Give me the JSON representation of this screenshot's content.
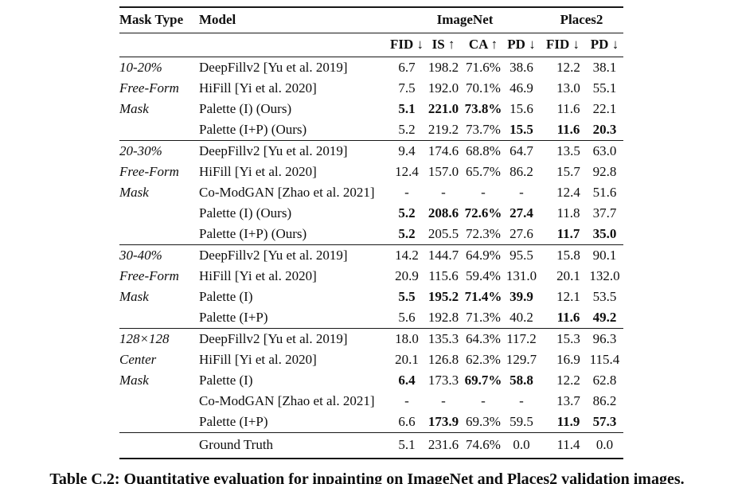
{
  "colors": {
    "text": "#0e0e0e",
    "background": "#ffffff",
    "rule": "#171717"
  },
  "table": {
    "header": {
      "mask_type_label": "Mask Type",
      "model_label": "Model",
      "dataset_groups": [
        "ImageNet",
        "Places2"
      ],
      "metric_headers": [
        "FID ↓",
        "IS ↑",
        "CA ↑",
        "PD ↓",
        "FID ↓",
        "PD ↓"
      ]
    },
    "groups": [
      {
        "mask_type": [
          "10-20%",
          "Free-Form",
          "Mask",
          ""
        ],
        "rows": [
          {
            "model": "DeepFillv2 [Yu et al. 2019]",
            "values": [
              "6.7",
              "198.2",
              "71.6%",
              "38.6",
              "12.2",
              "38.1"
            ],
            "bold": [
              false,
              false,
              false,
              false,
              false,
              false
            ]
          },
          {
            "model": "HiFill [Yi et al. 2020]",
            "values": [
              "7.5",
              "192.0",
              "70.1%",
              "46.9",
              "13.0",
              "55.1"
            ],
            "bold": [
              false,
              false,
              false,
              false,
              false,
              false
            ]
          },
          {
            "model": "Palette (I) (Ours)",
            "values": [
              "5.1",
              "221.0",
              "73.8%",
              "15.6",
              "11.6",
              "22.1"
            ],
            "bold": [
              true,
              true,
              true,
              false,
              false,
              false
            ]
          },
          {
            "model": "Palette (I+P) (Ours)",
            "values": [
              "5.2",
              "219.2",
              "73.7%",
              "15.5",
              "11.6",
              "20.3"
            ],
            "bold": [
              false,
              false,
              false,
              true,
              true,
              true
            ]
          }
        ]
      },
      {
        "mask_type": [
          "20-30%",
          "Free-Form",
          "Mask",
          "",
          ""
        ],
        "rows": [
          {
            "model": "DeepFillv2 [Yu et al. 2019]",
            "values": [
              "9.4",
              "174.6",
              "68.8%",
              "64.7",
              "13.5",
              "63.0"
            ],
            "bold": [
              false,
              false,
              false,
              false,
              false,
              false
            ]
          },
          {
            "model": "HiFill [Yi et al. 2020]",
            "values": [
              "12.4",
              "157.0",
              "65.7%",
              "86.2",
              "15.7",
              "92.8"
            ],
            "bold": [
              false,
              false,
              false,
              false,
              false,
              false
            ]
          },
          {
            "model": "Co-ModGAN [Zhao et al. 2021]",
            "values": [
              "-",
              "-",
              "-",
              "-",
              "12.4",
              "51.6"
            ],
            "bold": [
              false,
              false,
              false,
              false,
              false,
              false
            ]
          },
          {
            "model": "Palette (I) (Ours)",
            "values": [
              "5.2",
              "208.6",
              "72.6%",
              "27.4",
              "11.8",
              "37.7"
            ],
            "bold": [
              true,
              true,
              true,
              true,
              false,
              false
            ]
          },
          {
            "model": "Palette (I+P) (Ours)",
            "values": [
              "5.2",
              "205.5",
              "72.3%",
              "27.6",
              "11.7",
              "35.0"
            ],
            "bold": [
              true,
              false,
              false,
              false,
              true,
              true
            ]
          }
        ]
      },
      {
        "mask_type": [
          "30-40%",
          "Free-Form",
          "Mask",
          ""
        ],
        "rows": [
          {
            "model": "DeepFillv2 [Yu et al. 2019]",
            "values": [
              "14.2",
              "144.7",
              "64.9%",
              "95.5",
              "15.8",
              "90.1"
            ],
            "bold": [
              false,
              false,
              false,
              false,
              false,
              false
            ]
          },
          {
            "model": "HiFill [Yi et al. 2020]",
            "values": [
              "20.9",
              "115.6",
              "59.4%",
              "131.0",
              "20.1",
              "132.0"
            ],
            "bold": [
              false,
              false,
              false,
              false,
              false,
              false
            ]
          },
          {
            "model": "Palette (I)",
            "values": [
              "5.5",
              "195.2",
              "71.4%",
              "39.9",
              "12.1",
              "53.5"
            ],
            "bold": [
              true,
              true,
              true,
              true,
              false,
              false
            ]
          },
          {
            "model": "Palette (I+P)",
            "values": [
              "5.6",
              "192.8",
              "71.3%",
              "40.2",
              "11.6",
              "49.2"
            ],
            "bold": [
              false,
              false,
              false,
              false,
              true,
              true
            ]
          }
        ]
      },
      {
        "mask_type": [
          "128×128",
          "Center",
          "Mask",
          "",
          ""
        ],
        "rows": [
          {
            "model": "DeepFillv2 [Yu et al. 2019]",
            "values": [
              "18.0",
              "135.3",
              "64.3%",
              "117.2",
              "15.3",
              "96.3"
            ],
            "bold": [
              false,
              false,
              false,
              false,
              false,
              false
            ]
          },
          {
            "model": "HiFill [Yi et al. 2020]",
            "values": [
              "20.1",
              "126.8",
              "62.3%",
              "129.7",
              "16.9",
              "115.4"
            ],
            "bold": [
              false,
              false,
              false,
              false,
              false,
              false
            ]
          },
          {
            "model": "Palette (I)",
            "values": [
              "6.4",
              "173.3",
              "69.7%",
              "58.8",
              "12.2",
              "62.8"
            ],
            "bold": [
              true,
              false,
              true,
              true,
              false,
              false
            ]
          },
          {
            "model": "Co-ModGAN [Zhao et al. 2021]",
            "values": [
              "-",
              "-",
              "-",
              "-",
              "13.7",
              "86.2"
            ],
            "bold": [
              false,
              false,
              false,
              false,
              false,
              false
            ]
          },
          {
            "model": "Palette (I+P)",
            "values": [
              "6.6",
              "173.9",
              "69.3%",
              "59.5",
              "11.9",
              "57.3"
            ],
            "bold": [
              false,
              true,
              false,
              false,
              true,
              true
            ]
          }
        ]
      }
    ],
    "footer_row": {
      "mask_type": "",
      "model": "Ground Truth",
      "values": [
        "5.1",
        "231.6",
        "74.6%",
        "0.0",
        "11.4",
        "0.0"
      ],
      "bold": [
        false,
        false,
        false,
        false,
        false,
        false
      ]
    }
  },
  "caption": "Table C.2: Quantitative evaluation for inpainting on ImageNet and Places2 validation images."
}
